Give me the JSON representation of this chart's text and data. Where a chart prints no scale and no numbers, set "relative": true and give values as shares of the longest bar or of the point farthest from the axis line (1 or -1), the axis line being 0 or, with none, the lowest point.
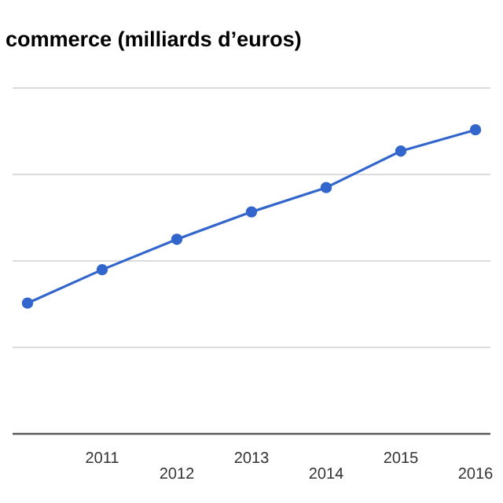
{
  "chart_data": {
    "type": "line",
    "title": "commerce (milliards d’euros)",
    "relative": true,
    "categories": [
      null,
      "2011",
      "2012",
      "2013",
      "2014",
      "2015",
      "2016"
    ],
    "series": [
      {
        "color": "#3366cc",
        "values": [
          0.43,
          0.54,
          0.64,
          0.73,
          0.81,
          0.93,
          1
        ]
      }
    ],
    "marker": "circle",
    "grid": "y"
  }
}
